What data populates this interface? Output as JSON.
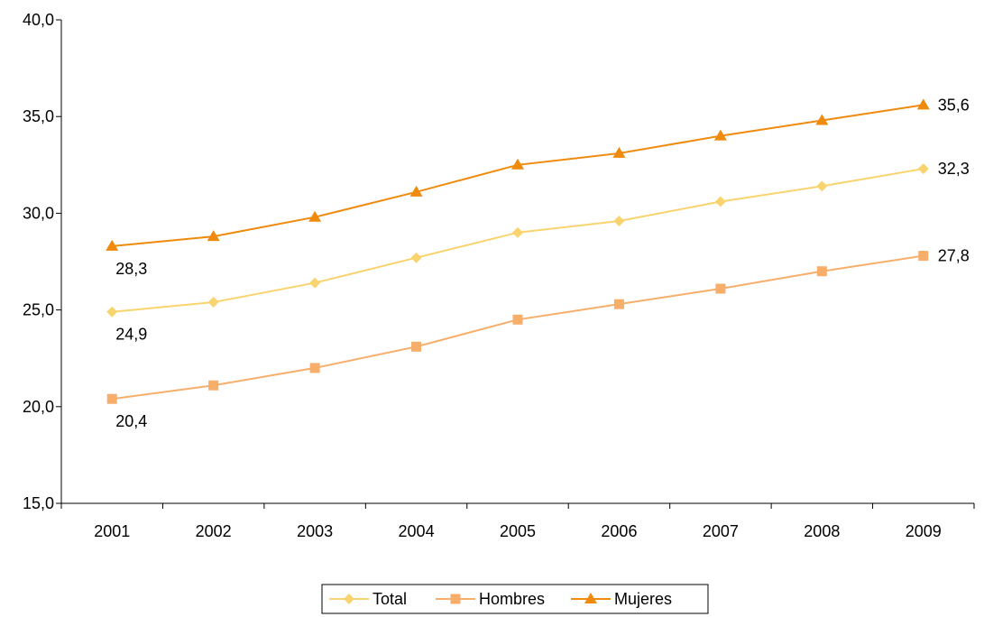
{
  "chart_data": {
    "type": "line",
    "categories": [
      "2001",
      "2002",
      "2003",
      "2004",
      "2005",
      "2006",
      "2007",
      "2008",
      "2009"
    ],
    "y_ticks": [
      "15,0",
      "20,0",
      "25,0",
      "30,0",
      "35,0",
      "40,0"
    ],
    "ylim": [
      15,
      40
    ],
    "grid": false,
    "legend_position": "bottom",
    "series": [
      {
        "name": "Total",
        "marker": "diamond",
        "color": "#F9D46E",
        "values": [
          24.9,
          25.4,
          26.4,
          27.7,
          29.0,
          29.6,
          30.6,
          31.4,
          32.3
        ],
        "labels": {
          "0": "24,9",
          "8": "32,3"
        }
      },
      {
        "name": "Hombres",
        "marker": "square",
        "color": "#F6AE6A",
        "values": [
          20.4,
          21.1,
          22.0,
          23.1,
          24.5,
          25.3,
          26.1,
          27.0,
          27.8
        ],
        "labels": {
          "0": "20,4",
          "8": "27,8"
        }
      },
      {
        "name": "Mujeres",
        "marker": "triangle",
        "color": "#F08A0C",
        "values": [
          28.3,
          28.8,
          29.8,
          31.1,
          32.5,
          33.1,
          34.0,
          34.8,
          35.6
        ],
        "labels": {
          "0": "28,3",
          "8": "35,6"
        }
      }
    ]
  }
}
